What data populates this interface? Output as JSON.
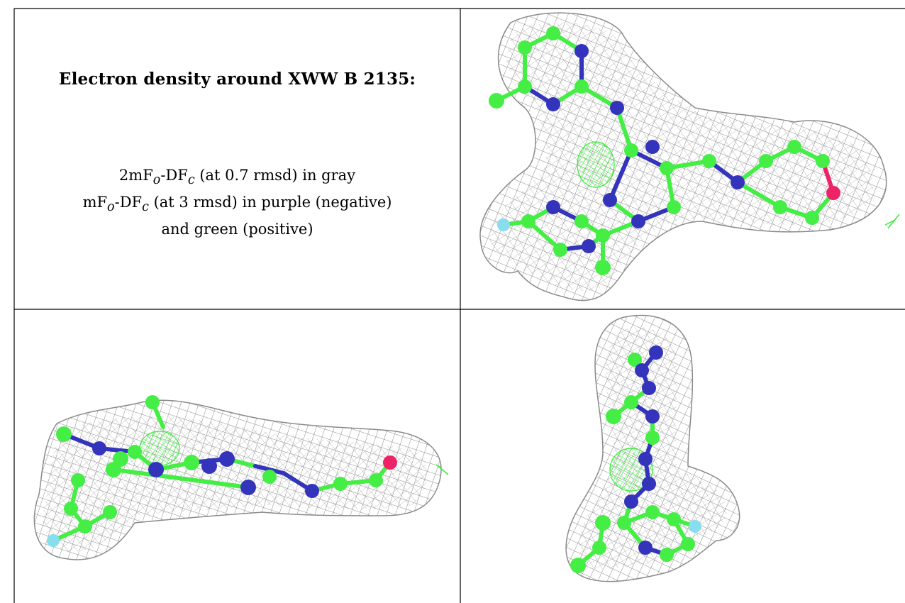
{
  "title": "Electron density around XWW B 2135:",
  "legend": {
    "line1": {
      "prefix": "2mF",
      "sub1": "o",
      "mid": "-DF",
      "sub2": "c",
      "rest": " (at 0.7 rmsd) in gray"
    },
    "line2": {
      "prefix": "mF",
      "sub1": "o",
      "mid": "-DF",
      "sub2": "c",
      "rest": " (at 3 rmsd) in purple (negative)"
    },
    "line3": "and green (positive)"
  },
  "colors": {
    "mesh_positive": "#33ee33",
    "mesh_gray": "#8a8a8a",
    "carbon": "#44ee44",
    "nitrogen": "#3333bb",
    "oxygen": "#ee2266",
    "fluorine": "#88ddee",
    "border": "#000000"
  },
  "views": [
    {
      "name": "top-right",
      "icon": "ligand-density-view-front"
    },
    {
      "name": "bottom-left",
      "icon": "ligand-density-view-side"
    },
    {
      "name": "bottom-right",
      "icon": "ligand-density-view-end"
    }
  ]
}
